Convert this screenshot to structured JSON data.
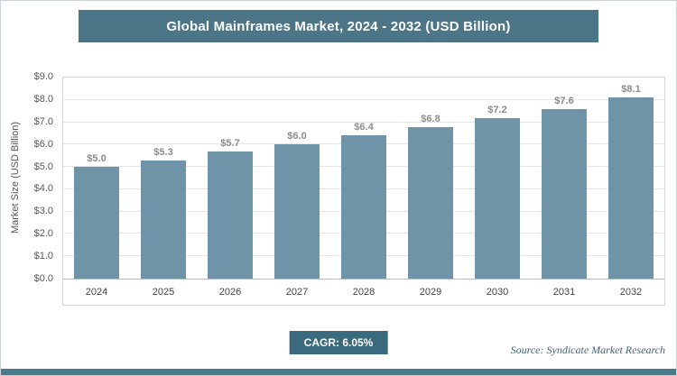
{
  "chart_data": {
    "type": "bar",
    "title": "Global Mainframes Market, 2024 - 2032 (USD Billion)",
    "ylabel": "Market Size (USD Billion)",
    "xlabel": "",
    "categories": [
      "2024",
      "2025",
      "2026",
      "2027",
      "2028",
      "2029",
      "2030",
      "2031",
      "2032"
    ],
    "values": [
      5.0,
      5.3,
      5.7,
      6.0,
      6.4,
      6.8,
      7.2,
      7.6,
      8.1
    ],
    "data_labels": [
      "$5.0",
      "$5.3",
      "$5.7",
      "$6.0",
      "$6.4",
      "$6.8",
      "$7.2",
      "$7.6",
      "$8.1"
    ],
    "ylim": [
      0,
      9
    ],
    "ytick_labels": [
      "$0.0",
      "$1.0",
      "$2.0",
      "$3.0",
      "$4.0",
      "$5.0",
      "$6.0",
      "$7.0",
      "$8.0",
      "$9.0"
    ],
    "grid": true,
    "legend": "none"
  },
  "footer": {
    "cagr_label": "CAGR: 6.05%",
    "source": "Source: Syndicate Market Research"
  },
  "colors": {
    "header_bg": "#4d7588",
    "bar": "#6f94a8",
    "cagr_bg": "#3a6a7d",
    "accent_bar": "#4a7b8c",
    "value_label": "#8c8c8c"
  }
}
